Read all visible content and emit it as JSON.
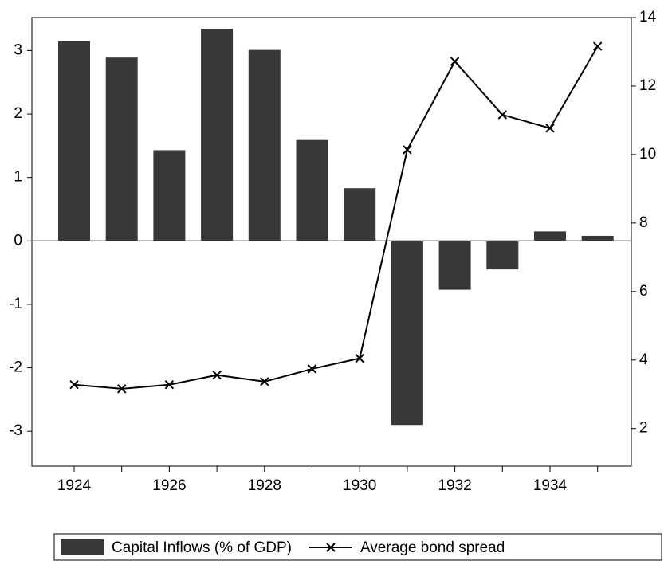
{
  "chart_data": {
    "type": "bar_line",
    "categories": [
      "1924",
      null,
      "1926",
      null,
      "1928",
      null,
      "1930",
      null,
      "1932",
      null,
      "1934",
      null
    ],
    "series": [
      {
        "name": "Capital Inflows (% of GDP)",
        "type": "bar",
        "color": "#383838",
        "values": [
          3.15,
          2.89,
          1.43,
          3.34,
          3.01,
          1.59,
          0.83,
          -2.9,
          -0.77,
          -0.45,
          0.15,
          0.08
        ]
      },
      {
        "name": "Average bond spread",
        "type": "line",
        "axis": "y2",
        "color": "#000000",
        "marker": "x",
        "values": [
          3.28,
          3.16,
          3.28,
          3.56,
          3.37,
          3.74,
          4.05,
          10.14,
          12.72,
          11.16,
          10.77,
          13.16
        ]
      }
    ],
    "ylim": [
      -3.55,
      3.52
    ],
    "yticks": [
      -3,
      -2,
      -1,
      0,
      1,
      2,
      3
    ],
    "y2lim": [
      0.9,
      14
    ],
    "y2ticks": [
      2,
      4,
      6,
      8,
      10,
      12,
      14
    ],
    "zero_line": true,
    "legend": "bottom"
  }
}
